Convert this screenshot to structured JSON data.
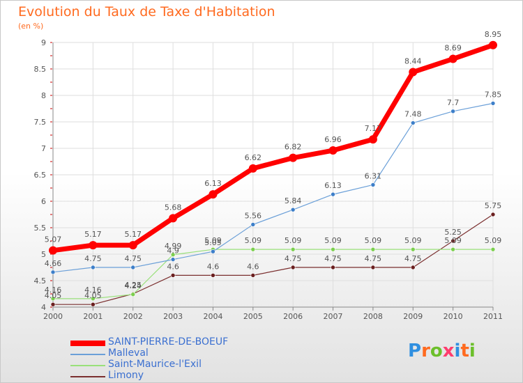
{
  "title": "Evolution du Taux de Taxe d'Habitation",
  "subtitle": "(en %)",
  "logo": {
    "text": "Proxiti",
    "letter_colors": [
      "#2f8fe0",
      "#ff6a1f",
      "#6cbf2b",
      "#ff3d6e",
      "#2f8fe0",
      "#ff6a1f",
      "#6cbf2b"
    ]
  },
  "chart_data": {
    "type": "line",
    "x": [
      "2000",
      "2001",
      "2002",
      "2003",
      "2004",
      "2005",
      "2006",
      "2007",
      "2008",
      "2009",
      "2010",
      "2011"
    ],
    "ylim": [
      4,
      9
    ],
    "yticks": [
      "4",
      "4.5",
      "5",
      "5.5",
      "6",
      "6.5",
      "7",
      "7.5",
      "8",
      "8.5",
      "9"
    ],
    "grid": true,
    "legend_position": "bottom-left",
    "series": [
      {
        "name": "SAINT-PIERRE-DE-BOEUF",
        "color": "#ff0000",
        "values": [
          5.07,
          5.17,
          5.17,
          5.68,
          6.13,
          6.62,
          6.82,
          6.96,
          7.17,
          8.44,
          8.69,
          8.95
        ],
        "labels": [
          "5.07",
          "5.17",
          "5.17",
          "5.68",
          "6.13",
          "6.62",
          "6.82",
          "6.96",
          "7.17",
          "8.44",
          "8.69",
          "8.95"
        ]
      },
      {
        "name": "Malleval",
        "color": "#6a9fd8",
        "values": [
          4.66,
          4.75,
          4.75,
          4.9,
          5.05,
          5.56,
          5.84,
          6.13,
          6.31,
          7.48,
          7.7,
          7.85
        ],
        "labels": [
          "4.66",
          "4.75",
          "4.75",
          "4.9",
          "5.05",
          "5.56",
          "5.84",
          "6.13",
          "6.31",
          "7.48",
          "7.7",
          "7.85"
        ]
      },
      {
        "name": "Saint-Maurice-l'Exil",
        "color": "#99e07a",
        "values": [
          4.16,
          4.16,
          4.24,
          4.99,
          5.09,
          5.09,
          5.09,
          5.09,
          5.09,
          5.09,
          5.09,
          5.09
        ],
        "labels": [
          "4.16",
          "4.16",
          "4.24",
          "4.99",
          "5.09",
          "5.09",
          "5.09",
          "5.09",
          "5.09",
          "5.09",
          "5.09",
          "5.09"
        ]
      },
      {
        "name": "Limony",
        "color": "#7a2e2e",
        "values": [
          4.05,
          4.05,
          4.25,
          4.6,
          4.6,
          4.6,
          4.75,
          4.75,
          4.75,
          4.75,
          5.25,
          5.75
        ],
        "labels": [
          "4.05",
          "4.05",
          "4.25",
          "4.6",
          "4.6",
          "4.6",
          "4.75",
          "4.75",
          "4.75",
          "4.75",
          "5.25",
          "5.75"
        ]
      }
    ]
  }
}
